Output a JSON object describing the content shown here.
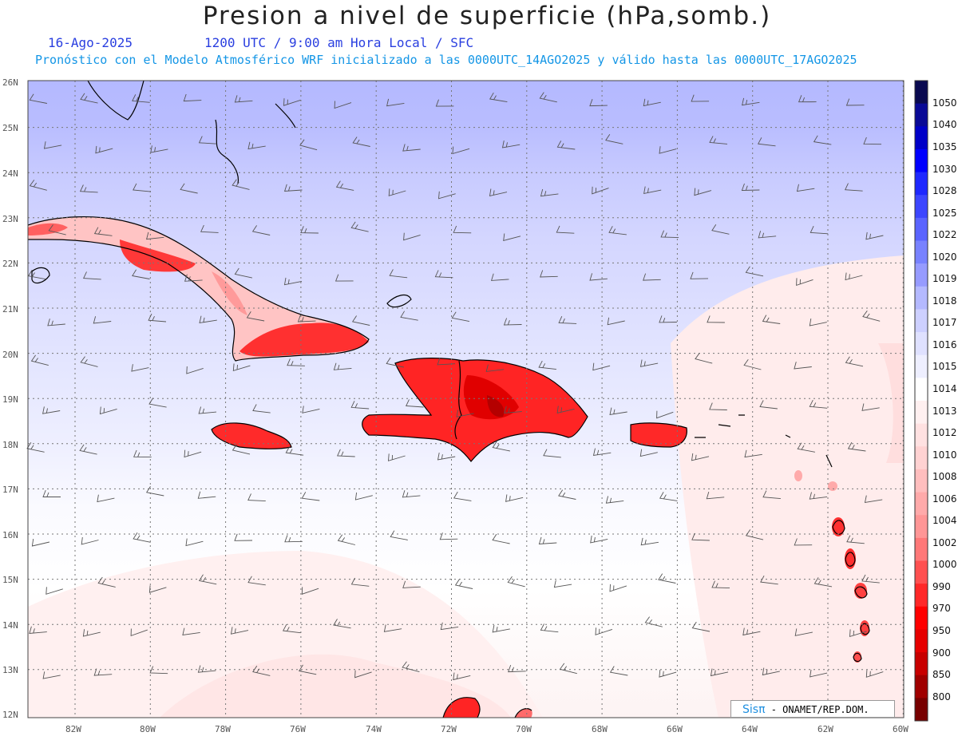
{
  "header": {
    "title": "Presion a nivel de superficie (hPa,somb.)",
    "date": "16-Ago-2025",
    "time": "1200 UTC / 9:00 am Hora Local / SFC",
    "forecast": "Pronóstico con el Modelo Atmosférico WRF inicializado a las 0000UTC_14AGO2025 y válido hasta las  0000UTC_17AGO2025"
  },
  "axes": {
    "lat_labels": [
      "26N",
      "25N",
      "24N",
      "23N",
      "22N",
      "21N",
      "20N",
      "19N",
      "18N",
      "17N",
      "16N",
      "15N",
      "14N",
      "13N",
      "12N"
    ],
    "lon_labels": [
      "82W",
      "80W",
      "78W",
      "76W",
      "74W",
      "72W",
      "70W",
      "68W",
      "66W",
      "64W",
      "62W",
      "60W"
    ]
  },
  "colorbar": {
    "levels": [
      "1050",
      "1040",
      "1035",
      "1030",
      "1028",
      "1025",
      "1022",
      "1020",
      "1019",
      "1018",
      "1017",
      "1016",
      "1015",
      "1014",
      "1013",
      "1012",
      "1010",
      "1008",
      "1006",
      "1004",
      "1002",
      "1000",
      "990",
      "970",
      "950",
      "900",
      "850",
      "800"
    ],
    "colors": [
      "#0a0a50",
      "#0a0a96",
      "#0000c8",
      "#0000ff",
      "#1e28ff",
      "#3c46ff",
      "#5a64ff",
      "#7882ff",
      "#969bff",
      "#b4b9ff",
      "#cdd0ff",
      "#dfe1ff",
      "#eeefff",
      "#ffffff",
      "#fff0f0",
      "#ffe1e1",
      "#ffd2d2",
      "#ffbebe",
      "#ffaaaa",
      "#ff9696",
      "#ff7878",
      "#ff5050",
      "#ff2828",
      "#ff0000",
      "#e60000",
      "#c80000",
      "#a00000",
      "#780000"
    ]
  },
  "credit": {
    "brand": "Sisπ",
    "text": " - ONAMET/REP.DOM."
  }
}
